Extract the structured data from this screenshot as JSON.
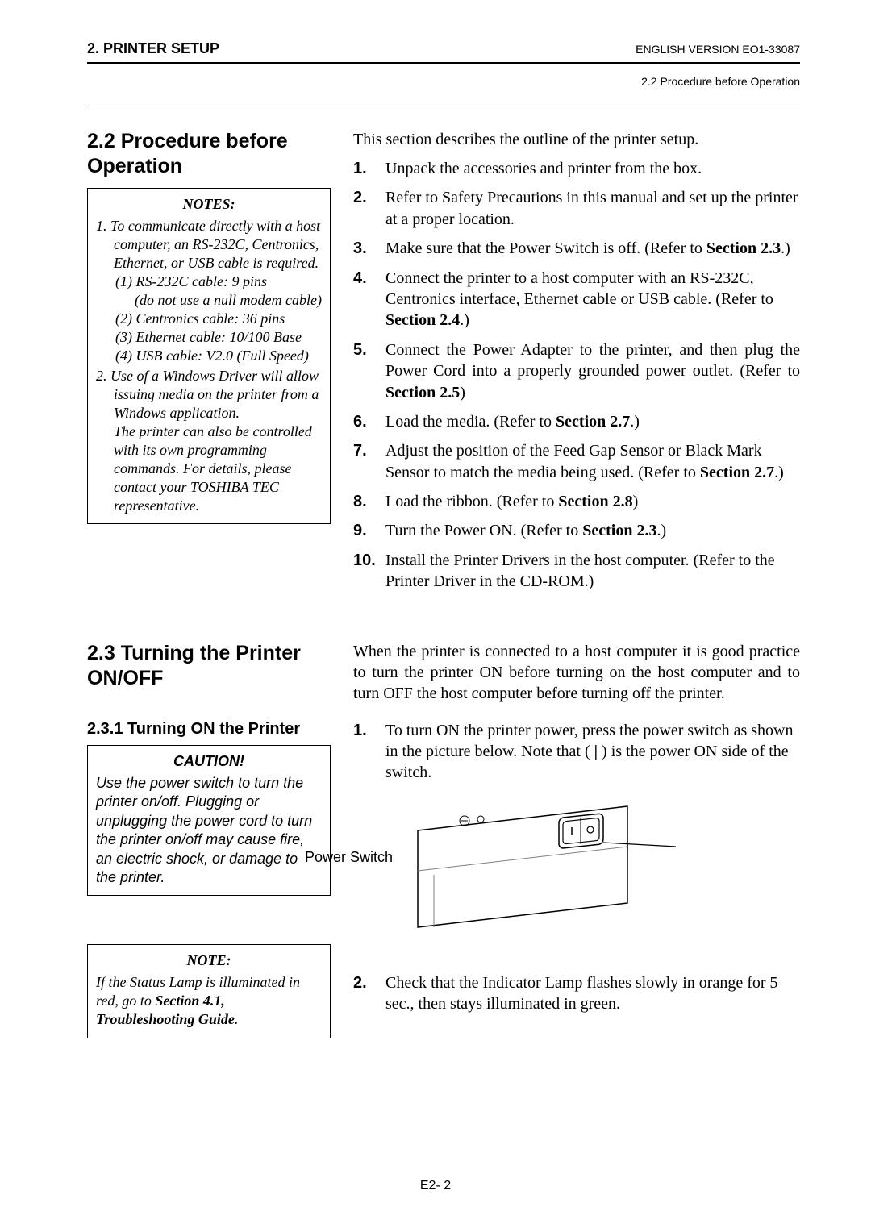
{
  "header": {
    "left": "2. PRINTER SETUP",
    "right": "ENGLISH VERSION EO1-33087",
    "sub": "2.2 Procedure before Operation"
  },
  "sec22": {
    "title": "2.2  Procedure before Operation",
    "notes_title": "NOTES:",
    "notes_body": {
      "l1": "1.  To communicate directly with a host computer, an RS-232C, Centronics, Ethernet, or USB cable is required.",
      "c1": "(1) RS-232C cable: 9 pins",
      "c1b": "(do not use a null modem cable)",
      "c2": "(2) Centronics cable: 36 pins",
      "c3": "(3) Ethernet cable: 10/100 Base",
      "c4": "(4) USB cable: V2.0 (Full Speed)",
      "l2": "2.  Use of a Windows Driver will allow issuing media on the printer from a Windows application.",
      "l2b": "The printer can also be controlled with its own programming commands.  For details, please contact your TOSHIBA TEC representative."
    },
    "intro": "This section describes the outline of the printer setup.",
    "steps": [
      "Unpack the accessories and printer from the box.",
      "Refer to Safety Precautions in this manual and set up the printer at a proper location.",
      "Make sure that the Power Switch is off. (Refer to <b>Section 2.3</b>.)",
      "Connect the printer to a host computer with an RS-232C, Centronics interface, Ethernet cable or USB cable. (Refer to <b>Section 2.4</b>.)",
      "Connect the Power Adapter to the printer, and then plug the Power Cord into a properly grounded power outlet. (Refer to <b>Section 2.5</b>)",
      "Load the media. (Refer to <b>Section 2.7</b>.)",
      "Adjust the position of the Feed Gap Sensor or Black Mark Sensor to match the media being used. (Refer to <b>Section 2.7</b>.)",
      "Load the ribbon. (Refer to <b>Section 2.8</b>)",
      "Turn the Power ON. (Refer to <b>Section 2.3</b>.)",
      "Install the Printer Drivers in the host computer.  (Refer to the Printer Driver in the CD-ROM.)"
    ]
  },
  "sec23": {
    "title": "2.3  Turning the Printer ON/OFF",
    "intro": "When the printer is connected to a host computer it is good practice to turn the printer ON before turning on the host computer and to turn OFF the host computer before turning off the printer."
  },
  "sec231": {
    "title": "2.3.1  Turning ON the Printer",
    "caution_title": "CAUTION!",
    "caution_body": "Use the power switch to turn the printer on/off. Plugging or unplugging the power cord to turn the printer on/off may cause fire, an electric shock, or damage to the printer.",
    "step1": "To turn ON the printer power, press the power switch as shown in the picture below.  Note that ( <b>|</b> ) is the power ON side of the switch.",
    "ps_label": "Power Switch",
    "step2": "Check that the Indicator Lamp flashes slowly in orange for 5 sec., then stays illuminated in green.",
    "note_title": "NOTE:",
    "note_body": "If the Status Lamp is illuminated in red, go to <b>Section 4.1, Troubleshooting Guide</b>."
  },
  "footer": "E2- 2",
  "colors": {
    "text": "#000000",
    "bg": "#ffffff",
    "line_light": "#808080"
  }
}
